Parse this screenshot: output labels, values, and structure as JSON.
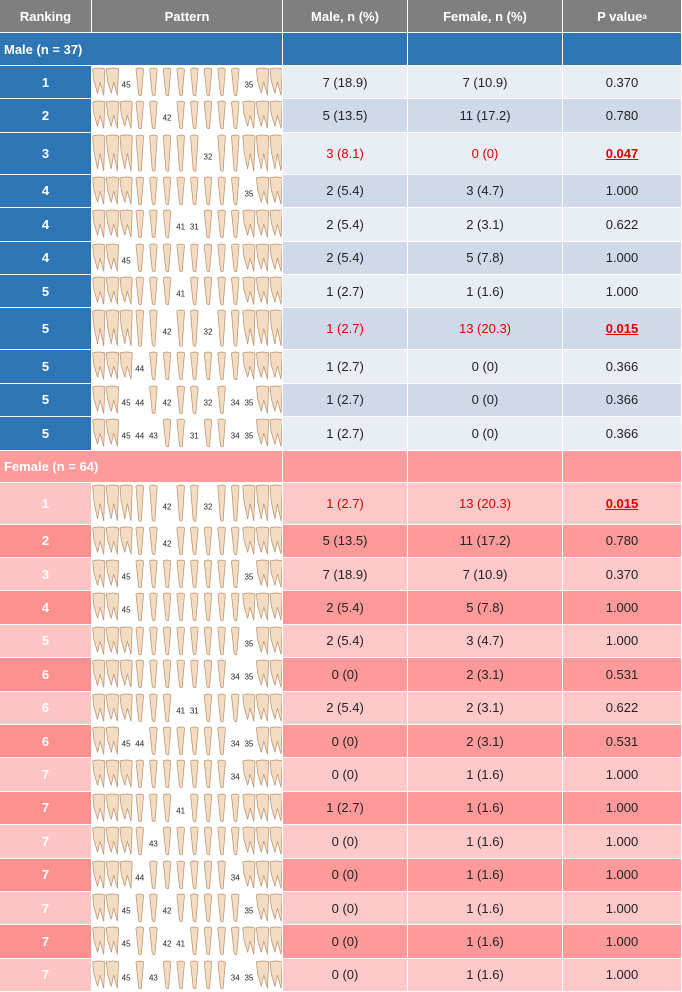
{
  "header": {
    "ranking": "Ranking",
    "pattern": "Pattern",
    "male": "Male, n (%)",
    "female": "Female, n (%)",
    "p": "P value",
    "p_note": "a"
  },
  "sections": [
    {
      "title": "Male (n = 37)",
      "rows": [
        {
          "ranking": "1",
          "missing": [
            "45",
            "35"
          ],
          "male": "7 (18.9)",
          "female": "7 (10.9)",
          "p": "0.370"
        },
        {
          "ranking": "2",
          "missing": [
            "42"
          ],
          "male": "5 (13.5)",
          "female": "11 (17.2)",
          "p": "0.780"
        },
        {
          "ranking": "3",
          "missing": [
            "32"
          ],
          "male": "3 (8.1)",
          "female": "0 (0)",
          "p": "0.047",
          "highlight": true
        },
        {
          "ranking": "4",
          "missing": [
            "35"
          ],
          "male": "2 (5.4)",
          "female": "3 (4.7)",
          "p": "1.000"
        },
        {
          "ranking": "4",
          "missing": [
            "41",
            "31"
          ],
          "male": "2 (5.4)",
          "female": "2 (3.1)",
          "p": "0.622"
        },
        {
          "ranking": "4",
          "missing": [
            "45"
          ],
          "male": "2 (5.4)",
          "female": "5 (7.8)",
          "p": "1.000"
        },
        {
          "ranking": "5",
          "missing": [
            "41"
          ],
          "male": "1 (2.7)",
          "female": "1 (1.6)",
          "p": "1.000"
        },
        {
          "ranking": "5",
          "missing": [
            "42",
            "32"
          ],
          "male": "1 (2.7)",
          "female": "13 (20.3)",
          "p": "0.015",
          "highlight": true
        },
        {
          "ranking": "5",
          "missing": [
            "44"
          ],
          "male": "1 (2.7)",
          "female": "0 (0)",
          "p": "0.366"
        },
        {
          "ranking": "5",
          "missing": [
            "45",
            "44",
            "42",
            "32",
            "34",
            "35"
          ],
          "male": "1 (2.7)",
          "female": "0 (0)",
          "p": "0.366"
        },
        {
          "ranking": "5",
          "missing": [
            "45",
            "44",
            "43",
            "31",
            "34",
            "35"
          ],
          "male": "1 (2.7)",
          "female": "0 (0)",
          "p": "0.366"
        }
      ]
    },
    {
      "title": "Female (n = 64)",
      "rows": [
        {
          "ranking": "1",
          "missing": [
            "42",
            "32"
          ],
          "male": "1 (2.7)",
          "female": "13 (20.3)",
          "p": "0.015",
          "highlight": true
        },
        {
          "ranking": "2",
          "missing": [
            "42"
          ],
          "male": "5 (13.5)",
          "female": "11 (17.2)",
          "p": "0.780"
        },
        {
          "ranking": "3",
          "missing": [
            "45",
            "35"
          ],
          "male": "7 (18.9)",
          "female": "7 (10.9)",
          "p": "0.370"
        },
        {
          "ranking": "4",
          "missing": [
            "45"
          ],
          "male": "2 (5.4)",
          "female": "5 (7.8)",
          "p": "1.000"
        },
        {
          "ranking": "5",
          "missing": [
            "35"
          ],
          "male": "2 (5.4)",
          "female": "3 (4.7)",
          "p": "1.000"
        },
        {
          "ranking": "6",
          "missing": [
            "34",
            "35"
          ],
          "male": "0 (0)",
          "female": "2 (3.1)",
          "p": "0.531"
        },
        {
          "ranking": "6",
          "missing": [
            "41",
            "31"
          ],
          "male": "2 (5.4)",
          "female": "2 (3.1)",
          "p": "0.622"
        },
        {
          "ranking": "6",
          "missing": [
            "45",
            "44",
            "34",
            "35"
          ],
          "male": "0 (0)",
          "female": "2 (3.1)",
          "p": "0.531"
        },
        {
          "ranking": "7",
          "missing": [
            "34"
          ],
          "male": "0 (0)",
          "female": "1 (1.6)",
          "p": "1.000"
        },
        {
          "ranking": "7",
          "missing": [
            "41"
          ],
          "male": "1 (2.7)",
          "female": "1 (1.6)",
          "p": "1.000"
        },
        {
          "ranking": "7",
          "missing": [
            "43"
          ],
          "male": "0 (0)",
          "female": "1 (1.6)",
          "p": "1.000"
        },
        {
          "ranking": "7",
          "missing": [
            "44",
            "34"
          ],
          "male": "0 (0)",
          "female": "1 (1.6)",
          "p": "1.000"
        },
        {
          "ranking": "7",
          "missing": [
            "45",
            "42",
            "35"
          ],
          "male": "0 (0)",
          "female": "1 (1.6)",
          "p": "1.000"
        },
        {
          "ranking": "7",
          "missing": [
            "45",
            "42",
            "41"
          ],
          "male": "0 (0)",
          "female": "1 (1.6)",
          "p": "1.000"
        },
        {
          "ranking": "7",
          "missing": [
            "45",
            "43",
            "34",
            "35"
          ],
          "male": "0 (0)",
          "female": "1 (1.6)",
          "p": "1.000"
        }
      ]
    }
  ]
}
